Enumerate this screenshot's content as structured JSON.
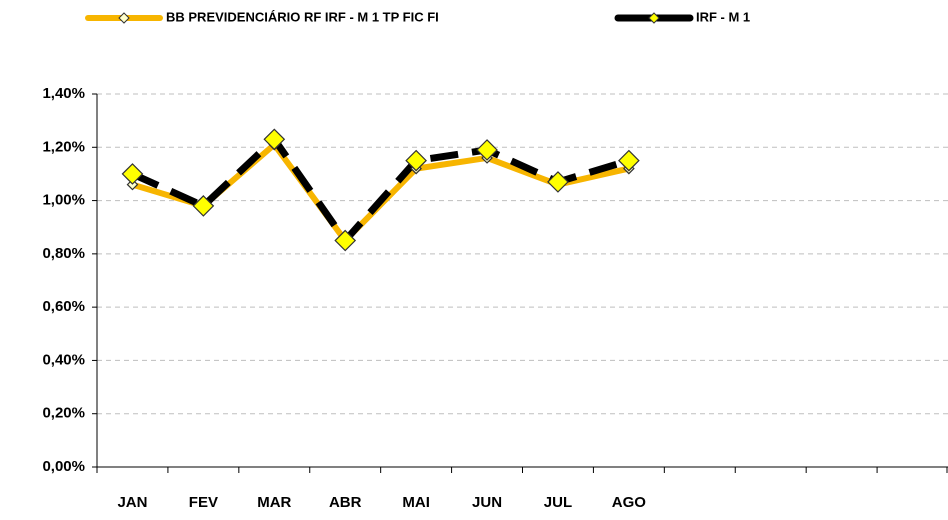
{
  "chart_data": {
    "type": "line",
    "categories": [
      "JAN",
      "FEV",
      "MAR",
      "ABR",
      "MAI",
      "JUN",
      "JUL",
      "AGO",
      null,
      null,
      null,
      null
    ],
    "series": [
      {
        "name": "BB PREVIDENCIÁRIO RF IRF - M 1 TP FIC FI",
        "color": "#F7B500",
        "marker_color": "#FFFFCC",
        "values": [
          1.06,
          0.98,
          1.21,
          0.85,
          1.12,
          1.16,
          1.06,
          1.12,
          null,
          null,
          null,
          null
        ]
      },
      {
        "name": "IRF - M 1",
        "color": "#000000",
        "marker_color": "#FFFF00",
        "values": [
          1.1,
          0.98,
          1.23,
          0.85,
          1.15,
          1.19,
          1.07,
          1.15,
          null,
          null,
          null,
          null
        ]
      }
    ],
    "ylim": [
      0,
      1.4
    ],
    "yticks": [
      {
        "value": 0,
        "label": "0,00%"
      },
      {
        "value": 0.2,
        "label": "0,20%"
      },
      {
        "value": 0.4,
        "label": "0,40%"
      },
      {
        "value": 0.6,
        "label": "0,60%"
      },
      {
        "value": 0.8,
        "label": "0,80%"
      },
      {
        "value": 1.0,
        "label": "1,00%"
      },
      {
        "value": 1.2,
        "label": "1,20%"
      },
      {
        "value": 1.4,
        "label": "1,40%"
      }
    ],
    "grid": true,
    "legend": "top"
  }
}
